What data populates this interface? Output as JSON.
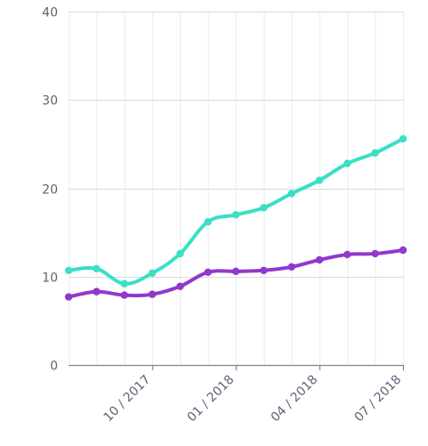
{
  "chart_data": {
    "type": "line",
    "title": "",
    "xlabel": "",
    "ylabel": "",
    "ylim": [
      0,
      40
    ],
    "y_ticks": [
      0,
      10,
      20,
      30,
      40
    ],
    "y_tick_labels": [
      "0",
      "10",
      "20",
      "30",
      "40"
    ],
    "x": [
      "2017-07",
      "2017-08",
      "2017-09",
      "2017-10",
      "2017-11",
      "2017-12",
      "2018-01",
      "2018-02",
      "2018-03",
      "2018-04",
      "2018-05",
      "2018-06",
      "2018-07"
    ],
    "x_ticks": [
      "2017-10",
      "2018-01",
      "2018-04",
      "2018-07"
    ],
    "x_tick_labels": [
      "10 / 2017",
      "01 / 2018",
      "04 / 2018",
      "07 / 2018"
    ],
    "grid": true,
    "legend": "none",
    "series": [
      {
        "color": "#3bdfc6",
        "values": [
          10.7,
          10.9,
          9.2,
          10.4,
          12.6,
          16.2,
          17.0,
          17.8,
          19.4,
          20.9,
          22.8,
          24.0,
          25.6
        ]
      },
      {
        "color": "#9238cc",
        "values": [
          7.7,
          8.3,
          7.9,
          8.0,
          8.9,
          10.5,
          10.6,
          10.7,
          11.1,
          11.9,
          12.5,
          12.6,
          13.0
        ]
      }
    ]
  }
}
